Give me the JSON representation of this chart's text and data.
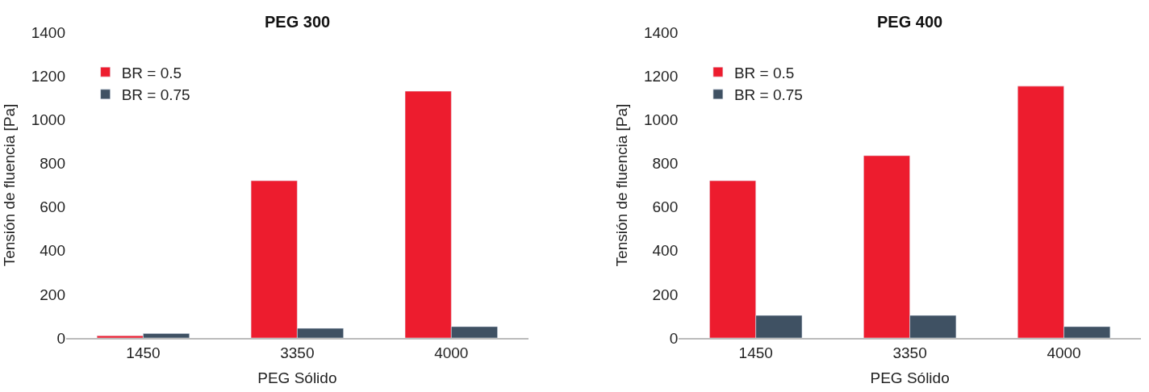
{
  "chart_data": [
    {
      "type": "bar",
      "title": "PEG 300",
      "xlabel": "PEG Sólido",
      "ylabel": "Tensión de fluencia [Pa]",
      "categories": [
        "1450",
        "3350",
        "4000"
      ],
      "series": [
        {
          "name": "BR = 0.5",
          "color": "#ed1c2e",
          "values": [
            10,
            720,
            1130
          ]
        },
        {
          "name": "BR = 0.75",
          "color": "#3f5163",
          "values": [
            20,
            44,
            52
          ]
        }
      ],
      "ylim": [
        0,
        1400
      ],
      "yticks": [
        0,
        200,
        400,
        600,
        800,
        1000,
        1200,
        1400
      ],
      "legend": "top left"
    },
    {
      "type": "bar",
      "title": "PEG 400",
      "xlabel": "PEG Sólido",
      "ylabel": "Tensión de fluencia [Pa]",
      "categories": [
        "1450",
        "3350",
        "4000"
      ],
      "series": [
        {
          "name": "BR = 0.5",
          "color": "#ed1c2e",
          "values": [
            720,
            835,
            1153
          ]
        },
        {
          "name": "BR = 0.75",
          "color": "#3f5163",
          "values": [
            103,
            103,
            52
          ]
        }
      ],
      "ylim": [
        0,
        1400
      ],
      "yticks": [
        0,
        200,
        400,
        600,
        800,
        1000,
        1200,
        1400
      ],
      "legend": "top left"
    }
  ]
}
